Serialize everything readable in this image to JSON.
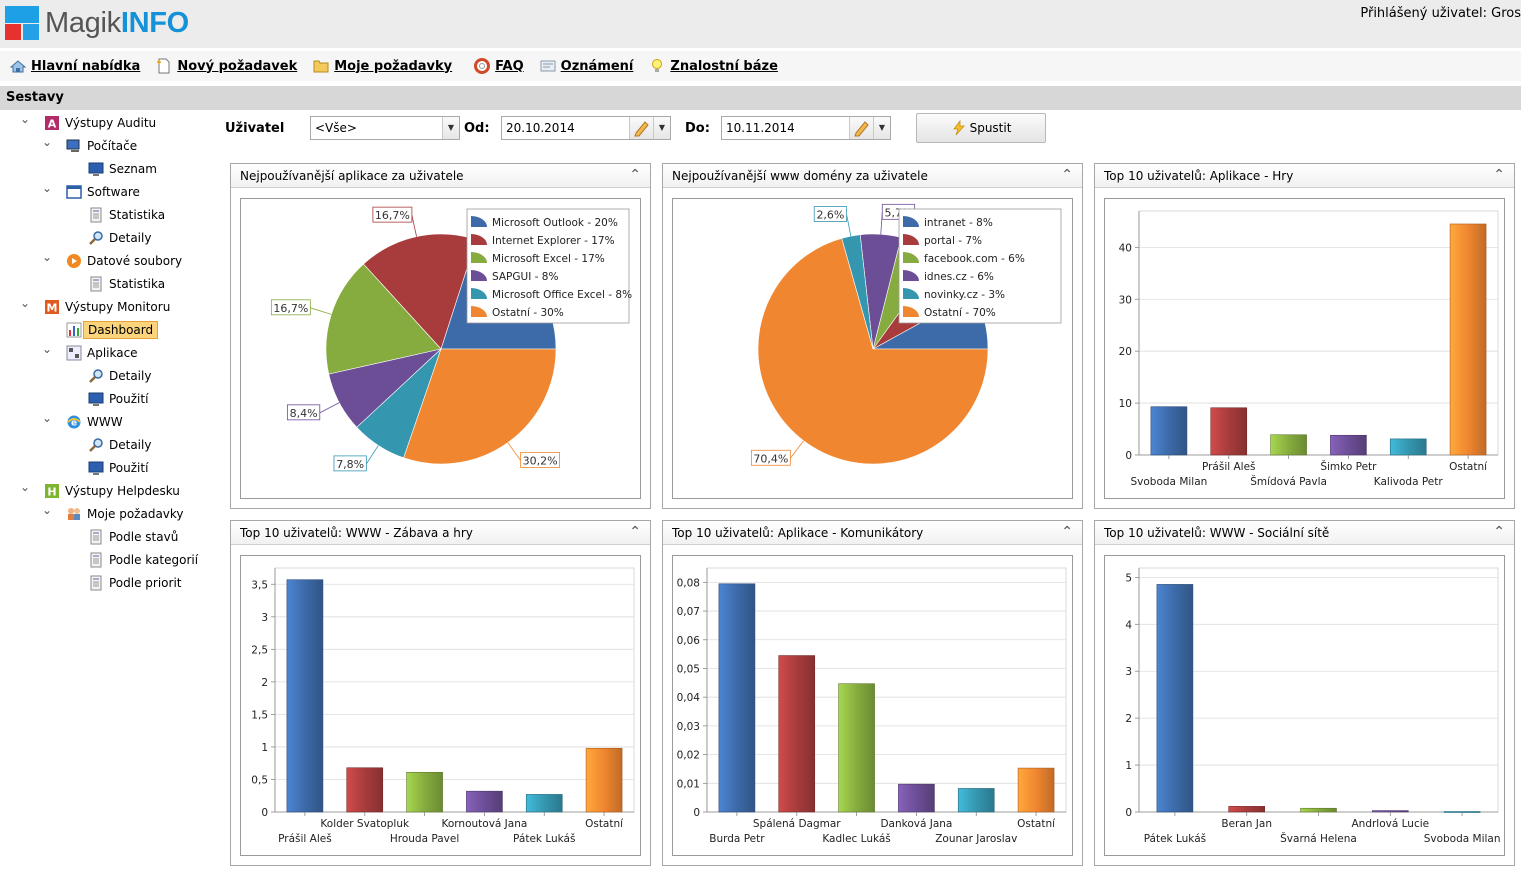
{
  "app": {
    "logo_prefix": "Magik",
    "logo_suffix": "INFO",
    "user_label": "Přihlášený uživatel: Gros"
  },
  "nav": [
    {
      "label": "Hlavní nabídka",
      "icon": "home-icon"
    },
    {
      "label": "Nový požadavek",
      "icon": "new-document-icon"
    },
    {
      "label": "Moje požadavky",
      "icon": "folder-icon"
    },
    {
      "label": "FAQ",
      "icon": "lifebuoy-icon"
    },
    {
      "label": "Oznámení",
      "icon": "announcement-icon"
    },
    {
      "label": "Znalostní báze",
      "icon": "lightbulb-icon"
    }
  ],
  "section_title": "Sestavy",
  "tree": [
    {
      "label": "Výstupy Auditu",
      "level": 0,
      "toggle": true,
      "icon": "audit-icon"
    },
    {
      "label": "Počítače",
      "level": 1,
      "toggle": true,
      "icon": "computer-icon"
    },
    {
      "label": "Seznam",
      "level": 2,
      "toggle": false,
      "icon": "monitor-icon"
    },
    {
      "label": "Software",
      "level": 1,
      "toggle": true,
      "icon": "window-icon"
    },
    {
      "label": "Statistika",
      "level": 2,
      "toggle": false,
      "icon": "calculator-icon"
    },
    {
      "label": "Detaily",
      "level": 2,
      "toggle": false,
      "icon": "magnifier-icon"
    },
    {
      "label": "Datové soubory",
      "level": 1,
      "toggle": true,
      "icon": "play-icon"
    },
    {
      "label": "Statistika",
      "level": 2,
      "toggle": false,
      "icon": "calculator-icon"
    },
    {
      "label": "Výstupy Monitoru",
      "level": 0,
      "toggle": true,
      "icon": "monitor-m-icon"
    },
    {
      "label": "Dashboard",
      "level": 1,
      "toggle": false,
      "icon": "chart-icon",
      "selected": true
    },
    {
      "label": "Aplikace",
      "level": 1,
      "toggle": true,
      "icon": "apps-icon"
    },
    {
      "label": "Detaily",
      "level": 2,
      "toggle": false,
      "icon": "magnifier-icon"
    },
    {
      "label": "Použití",
      "level": 2,
      "toggle": false,
      "icon": "monitor-icon"
    },
    {
      "label": "WWW",
      "level": 1,
      "toggle": true,
      "icon": "globe-icon"
    },
    {
      "label": "Detaily",
      "level": 2,
      "toggle": false,
      "icon": "magnifier-icon"
    },
    {
      "label": "Použití",
      "level": 2,
      "toggle": false,
      "icon": "monitor-icon"
    },
    {
      "label": "Výstupy Helpdesku",
      "level": 0,
      "toggle": true,
      "icon": "helpdesk-h-icon"
    },
    {
      "label": "Moje požadavky",
      "level": 1,
      "toggle": true,
      "icon": "users-icon"
    },
    {
      "label": "Podle stavů",
      "level": 2,
      "toggle": false,
      "icon": "calculator-icon"
    },
    {
      "label": "Podle kategorií",
      "level": 2,
      "toggle": false,
      "icon": "calculator-icon"
    },
    {
      "label": "Podle priorit",
      "level": 2,
      "toggle": false,
      "icon": "calculator-icon"
    }
  ],
  "filters": {
    "user_label": "Uživatel",
    "user_value": "<Vše>",
    "from_label": "Od:",
    "from_value": "20.10.2014",
    "to_label": "Do:",
    "to_value": "10.11.2014",
    "run_label": "Spustit"
  },
  "colors": {
    "series": [
      "#3d6aa8",
      "#a83c3c",
      "#86ac3f",
      "#6c4e96",
      "#3596b0",
      "#f08630"
    ]
  },
  "chart_data": [
    {
      "type": "pie",
      "title": "Nejpoužívanější aplikace za uživatele",
      "categories": [
        "Microsoft Outlook",
        "Internet Explorer",
        "Microsoft Excel",
        "SAPGUI",
        "Microsoft Office Excel",
        "Ostatní"
      ],
      "values": [
        20,
        16.7,
        16.7,
        8.4,
        7.8,
        30.2
      ],
      "legend": [
        "Microsoft Outlook - 20%",
        "Internet Explorer - 17%",
        "Microsoft Excel - 17%",
        "SAPGUI - 8%",
        "Microsoft Office Excel - 8%",
        "Ostatní - 30%"
      ],
      "labels": [
        "",
        "16,7%",
        "16,7%",
        "8,4%",
        "7,8%",
        "30,2%"
      ],
      "legend_position": "top-right"
    },
    {
      "type": "pie",
      "title": "Nejpoužívanější www domény za uživatele",
      "categories": [
        "intranet",
        "portal",
        "facebook.com",
        "idnes.cz",
        "novinky.cz",
        "Ostatní"
      ],
      "values": [
        8,
        7,
        6,
        5.7,
        2.6,
        70.4
      ],
      "legend": [
        "intranet - 8%",
        "portal - 7%",
        "facebook.com - 6%",
        "idnes.cz - 6%",
        "novinky.cz - 3%",
        "Ostatní - 70%"
      ],
      "labels": [
        "",
        "",
        "6,",
        "5,7%",
        "2,6%",
        "70,4%"
      ],
      "legend_position": "top-right"
    },
    {
      "type": "bar",
      "title": "Top 10 uživatelů: Aplikace - Hry",
      "categories": [
        "Svoboda Milan",
        "Prášil Aleš",
        "Šmídová Pavla",
        "Šimko Petr",
        "Kalivoda Petr",
        "Ostatní"
      ],
      "values": [
        9.3,
        9.1,
        3.9,
        3.8,
        3.1,
        44.5
      ],
      "ylim": [
        0,
        47
      ],
      "yticks": [
        0,
        10,
        20,
        30,
        40
      ],
      "ytick_labels": [
        "0",
        "10",
        "20",
        "30",
        "40"
      ]
    },
    {
      "type": "bar",
      "title": "Top 10 uživatelů: WWW - Zábava a hry",
      "categories": [
        "Prášil Aleš",
        "Kolder Svatopluk",
        "Hrouda Pavel",
        "Kornoutová Jana",
        "Pátek Lukáš",
        "Ostatní"
      ],
      "values": [
        3.57,
        0.68,
        0.61,
        0.32,
        0.27,
        0.98
      ],
      "ylim": [
        0,
        3.75
      ],
      "yticks": [
        0,
        0.5,
        1,
        1.5,
        2,
        2.5,
        3,
        3.5
      ],
      "ytick_labels": [
        "0",
        "0,5",
        "1",
        "1,5",
        "2",
        "2,5",
        "3",
        "3,5"
      ]
    },
    {
      "type": "bar",
      "title": "Top 10 uživatelů: Aplikace - Komunikátory",
      "categories": [
        "Burda Petr",
        "Spálená Dagmar",
        "Kadlec Lukáš",
        "Danková Jana",
        "Zounar Jaroslav",
        "Ostatní"
      ],
      "values": [
        0.0795,
        0.0545,
        0.0447,
        0.0097,
        0.0082,
        0.0153
      ],
      "ylim": [
        0,
        0.085
      ],
      "yticks": [
        0,
        0.01,
        0.02,
        0.03,
        0.04,
        0.05,
        0.06,
        0.07,
        0.08
      ],
      "ytick_labels": [
        "0",
        "0,01",
        "0,02",
        "0,03",
        "0,04",
        "0,05",
        "0,06",
        "0,07",
        "0,08"
      ]
    },
    {
      "type": "bar",
      "title": "Top 10 uživatelů: WWW - Sociální sítě",
      "categories": [
        "Pátek Lukáš",
        "Beran Jan",
        "Švarná Helena",
        "Andrlová Lucie",
        "Svoboda Milan"
      ],
      "values": [
        4.85,
        0.12,
        0.08,
        0.03,
        0.01
      ],
      "ylim": [
        0,
        5.2
      ],
      "yticks": [
        0,
        1,
        2,
        3,
        4,
        5
      ],
      "ytick_labels": [
        "0",
        "1",
        "2",
        "3",
        "4",
        "5"
      ]
    }
  ]
}
